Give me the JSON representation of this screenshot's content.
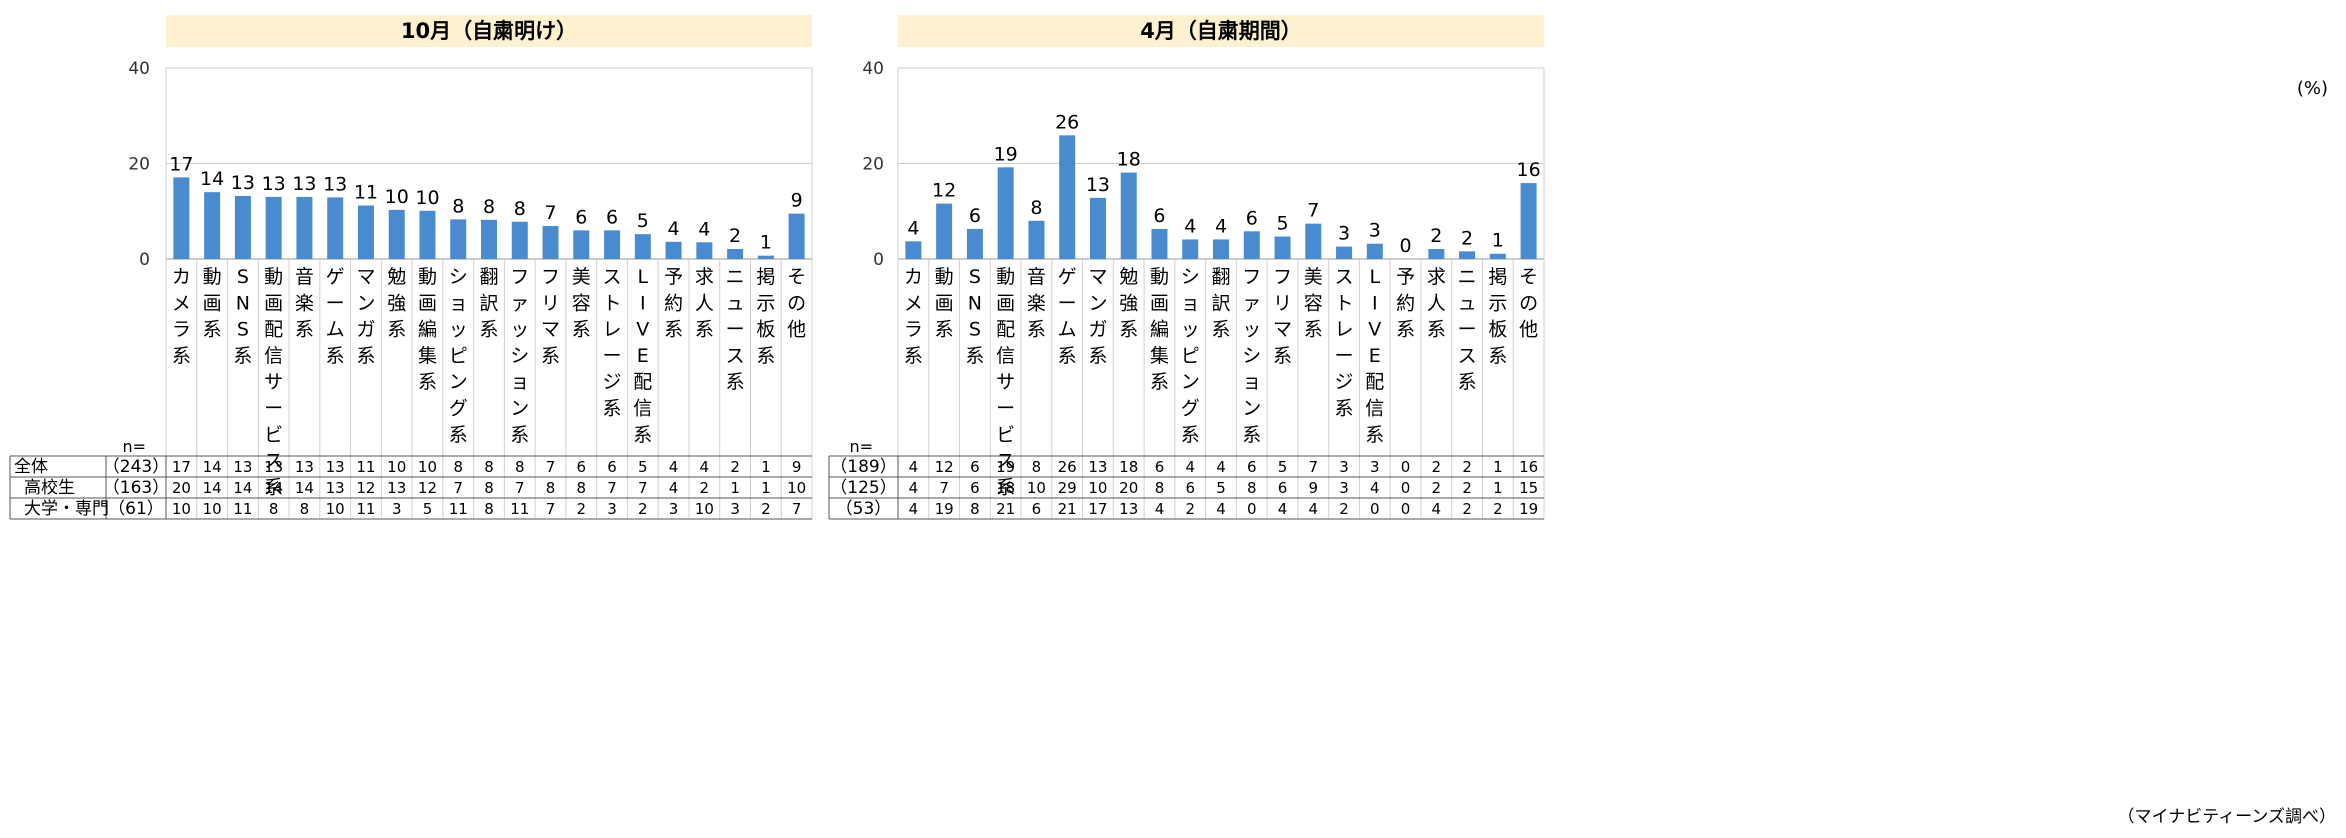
{
  "unit_label": "(%)",
  "source_note": "（マイナビティーンズ調べ）",
  "n_label": "n=",
  "chart_data": [
    {
      "type": "bar",
      "title": "10月（自粛明け）",
      "ylim": [
        0,
        40
      ],
      "yticks": [
        0,
        20,
        40
      ],
      "grid": true,
      "bar_color": "#4a8bd0",
      "title_bg": "#fdf1cf",
      "categories": [
        "カメラ系",
        "動画系",
        "SNS系",
        "動画配信サービス系",
        "音楽系",
        "ゲーム系",
        "マンガ系",
        "勉強系",
        "動画編集系",
        "ショッピング系",
        "翻訳系",
        "ファッション系",
        "フリマ系",
        "美容系",
        "ストレージ系",
        "LIVE配信系",
        "予約系",
        "求人系",
        "ニュース系",
        "掲示板系",
        "その他"
      ],
      "values": [
        17.1,
        14.0,
        13.2,
        13.0,
        13.0,
        12.9,
        11.2,
        10.3,
        10.1,
        8.3,
        8.2,
        7.8,
        6.9,
        6.0,
        6.0,
        5.2,
        3.6,
        3.5,
        2.1,
        0.7,
        9.5
      ],
      "data_labels": [
        "17",
        "14",
        "13",
        "13",
        "13",
        "13",
        "11",
        "10",
        "10",
        "8",
        "8",
        "8",
        "7",
        "6",
        "6",
        "5",
        "4",
        "4",
        "2",
        "1",
        "9"
      ],
      "table": [
        {
          "label": "全体",
          "n": "（243）",
          "values": [
            "17",
            "14",
            "13",
            "13",
            "13",
            "13",
            "11",
            "10",
            "10",
            "8",
            "8",
            "8",
            "7",
            "6",
            "6",
            "5",
            "4",
            "4",
            "2",
            "1",
            "9"
          ]
        },
        {
          "label": "高校生",
          "n": "（163）",
          "values": [
            "20",
            "14",
            "14",
            "14",
            "14",
            "13",
            "12",
            "13",
            "12",
            "7",
            "8",
            "7",
            "8",
            "8",
            "7",
            "7",
            "4",
            "2",
            "1",
            "1",
            "10"
          ]
        },
        {
          "label": "大学・専門",
          "n": "（61）",
          "values": [
            "10",
            "10",
            "11",
            "8",
            "8",
            "10",
            "11",
            "3",
            "5",
            "11",
            "8",
            "11",
            "7",
            "2",
            "3",
            "2",
            "3",
            "10",
            "3",
            "2",
            "7"
          ]
        }
      ]
    },
    {
      "type": "bar",
      "title": "4月（自粛期間）",
      "ylim": [
        0,
        40
      ],
      "yticks": [
        0,
        20,
        40
      ],
      "grid": true,
      "bar_color": "#4a8bd0",
      "title_bg": "#fdf1cf",
      "categories": [
        "カメラ系",
        "動画系",
        "SNS系",
        "動画配信サービス系",
        "音楽系",
        "ゲーム系",
        "マンガ系",
        "勉強系",
        "動画編集系",
        "ショッピング系",
        "翻訳系",
        "ファッション系",
        "フリマ系",
        "美容系",
        "ストレージ系",
        "LIVE配信系",
        "予約系",
        "求人系",
        "ニュース系",
        "掲示板系",
        "その他"
      ],
      "values": [
        3.7,
        11.6,
        6.3,
        19.2,
        8.0,
        25.9,
        12.8,
        18.1,
        6.3,
        4.1,
        4.1,
        5.8,
        4.7,
        7.4,
        2.6,
        3.2,
        0,
        2.1,
        1.6,
        1.1,
        15.9
      ],
      "data_labels": [
        "4",
        "12",
        "6",
        "19",
        "8",
        "26",
        "13",
        "18",
        "6",
        "4",
        "4",
        "6",
        "5",
        "7",
        "3",
        "3",
        "0",
        "2",
        "2",
        "1",
        "16"
      ],
      "table": [
        {
          "label": "",
          "n": "（189）",
          "values": [
            "4",
            "12",
            "6",
            "19",
            "8",
            "26",
            "13",
            "18",
            "6",
            "4",
            "4",
            "6",
            "5",
            "7",
            "3",
            "3",
            "0",
            "2",
            "2",
            "1",
            "16"
          ]
        },
        {
          "label": "",
          "n": "（125）",
          "values": [
            "4",
            "7",
            "6",
            "18",
            "10",
            "29",
            "10",
            "20",
            "8",
            "6",
            "5",
            "8",
            "6",
            "9",
            "3",
            "4",
            "0",
            "2",
            "2",
            "1",
            "15"
          ]
        },
        {
          "label": "",
          "n": "（53）",
          "values": [
            "4",
            "19",
            "8",
            "21",
            "6",
            "21",
            "17",
            "13",
            "4",
            "2",
            "4",
            "0",
            "4",
            "4",
            "2",
            "0",
            "0",
            "4",
            "2",
            "2",
            "19"
          ]
        }
      ]
    }
  ]
}
